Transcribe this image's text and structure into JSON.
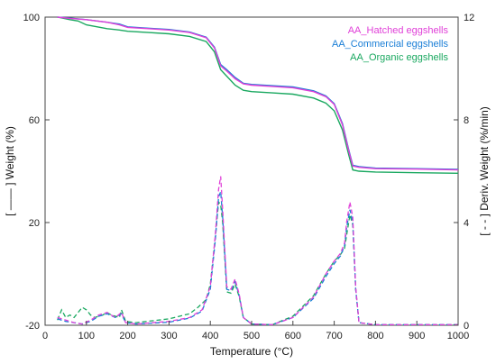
{
  "chart_data": {
    "type": "line",
    "xlabel": "Temperature (°C)",
    "ylabel_left": "[ —— ] Weight (%)",
    "ylabel_right": "[ - - ] Deriv. Weight (%/min)",
    "xlim": [
      0,
      1000
    ],
    "ylim_left": [
      -20,
      100
    ],
    "ylim_right": [
      0,
      12
    ],
    "x_ticks": [
      0,
      100,
      200,
      300,
      400,
      500,
      600,
      700,
      800,
      900,
      1000
    ],
    "y_left_ticks": [
      -20,
      20,
      60,
      100
    ],
    "y_right_ticks": [
      0,
      4,
      8,
      12
    ],
    "grid": false,
    "legend_position": "top-right",
    "series": [
      {
        "name": "AA_Hatched eggshells",
        "color": "#e040d8",
        "weight": {
          "x": [
            30,
            60,
            100,
            150,
            180,
            200,
            250,
            300,
            350,
            390,
            410,
            425,
            440,
            460,
            480,
            500,
            550,
            600,
            650,
            680,
            700,
            720,
            735,
            745,
            760,
            800,
            900,
            1000
          ],
          "y": [
            100,
            99.5,
            99,
            98,
            97,
            96,
            95.5,
            95,
            94,
            92,
            88,
            81,
            79,
            76,
            74,
            73.5,
            73,
            72.5,
            71,
            69,
            66,
            58,
            48,
            42,
            41.5,
            41,
            40.8,
            40.5
          ]
        },
        "deriv": {
          "x": [
            30,
            50,
            70,
            90,
            110,
            130,
            150,
            170,
            185,
            195,
            220,
            300,
            350,
            380,
            400,
            412,
            420,
            425,
            430,
            440,
            450,
            460,
            470,
            480,
            500,
            550,
            600,
            650,
            680,
            700,
            715,
            725,
            730,
            738,
            745,
            752,
            760,
            800,
            900,
            1000
          ],
          "y": [
            0.3,
            0.2,
            0.1,
            0.05,
            0.2,
            0.4,
            0.5,
            0.3,
            0.5,
            0.1,
            0.05,
            0.15,
            0.3,
            0.6,
            1.5,
            3.5,
            5.3,
            5.8,
            4.5,
            1.5,
            1.4,
            1.8,
            1.2,
            0.3,
            0.05,
            0.02,
            0.3,
            1.1,
            2.0,
            2.5,
            2.8,
            3.2,
            4.0,
            4.8,
            4.2,
            1.5,
            0.1,
            0.02,
            0.02,
            0.02
          ]
        }
      },
      {
        "name": "AA_Commercial eggshells",
        "color": "#1a7ed6",
        "weight": {
          "x": [
            30,
            60,
            100,
            150,
            180,
            200,
            250,
            300,
            350,
            390,
            410,
            425,
            440,
            460,
            480,
            500,
            550,
            600,
            650,
            680,
            700,
            720,
            735,
            745,
            760,
            800,
            900,
            1000
          ],
          "y": [
            100,
            99.6,
            99,
            98,
            97.3,
            96.2,
            95.7,
            95.2,
            94.2,
            92.2,
            88.3,
            81.5,
            79.5,
            76.5,
            74.2,
            73.8,
            73.3,
            72.8,
            71.3,
            69.3,
            66.3,
            58.5,
            48.5,
            42.3,
            41.8,
            41.2,
            41,
            40.7
          ]
        },
        "deriv": {
          "x": [
            30,
            50,
            70,
            90,
            110,
            130,
            150,
            170,
            185,
            195,
            220,
            300,
            350,
            380,
            400,
            412,
            420,
            425,
            430,
            440,
            450,
            460,
            470,
            480,
            500,
            550,
            600,
            650,
            680,
            700,
            715,
            725,
            730,
            738,
            745,
            752,
            760,
            800,
            900,
            1000
          ],
          "y": [
            0.25,
            0.15,
            0.1,
            0.05,
            0.15,
            0.35,
            0.45,
            0.3,
            0.45,
            0.1,
            0.05,
            0.12,
            0.28,
            0.55,
            1.4,
            3.3,
            5.0,
            5.2,
            4.2,
            1.4,
            1.35,
            1.7,
            1.15,
            0.3,
            0.05,
            0.02,
            0.3,
            1.05,
            1.9,
            2.4,
            2.7,
            3.1,
            3.8,
            4.5,
            4.0,
            1.4,
            0.1,
            0.02,
            0.02,
            0.02
          ]
        }
      },
      {
        "name": "AA_Organic eggshells",
        "color": "#1aa860",
        "weight": {
          "x": [
            30,
            60,
            80,
            100,
            150,
            180,
            200,
            250,
            300,
            350,
            390,
            410,
            425,
            440,
            460,
            480,
            500,
            550,
            600,
            650,
            680,
            700,
            720,
            735,
            745,
            760,
            800,
            900,
            1000
          ],
          "y": [
            100,
            99,
            98.5,
            97,
            95.5,
            95,
            94.5,
            94,
            93.5,
            92.5,
            90.5,
            86.5,
            79.5,
            77,
            73.5,
            71.5,
            71,
            70.5,
            70,
            68.5,
            66.5,
            63.5,
            56,
            46.5,
            40.5,
            40,
            39.7,
            39.4,
            39.2
          ]
        },
        "deriv": {
          "x": [
            30,
            40,
            50,
            60,
            70,
            80,
            90,
            100,
            110,
            120,
            140,
            150,
            160,
            180,
            185,
            195,
            220,
            300,
            350,
            370,
            390,
            400,
            412,
            420,
            425,
            430,
            440,
            450,
            460,
            470,
            480,
            500,
            550,
            600,
            650,
            680,
            700,
            715,
            725,
            730,
            738,
            745,
            752,
            760,
            800,
            900,
            1000
          ],
          "y": [
            0.2,
            0.6,
            0.3,
            0.4,
            0.3,
            0.5,
            0.7,
            0.6,
            0.4,
            0.3,
            0.4,
            0.5,
            0.4,
            0.3,
            0.6,
            0.15,
            0.1,
            0.25,
            0.45,
            0.7,
            1.0,
            1.6,
            3.4,
            4.8,
            4.7,
            4.0,
            1.3,
            1.25,
            1.6,
            1.1,
            0.3,
            0.05,
            0.02,
            0.35,
            1.15,
            2.0,
            2.5,
            2.75,
            3.0,
            3.5,
            4.3,
            3.9,
            1.4,
            0.1,
            0.02,
            0.02,
            0.02
          ]
        }
      }
    ]
  }
}
